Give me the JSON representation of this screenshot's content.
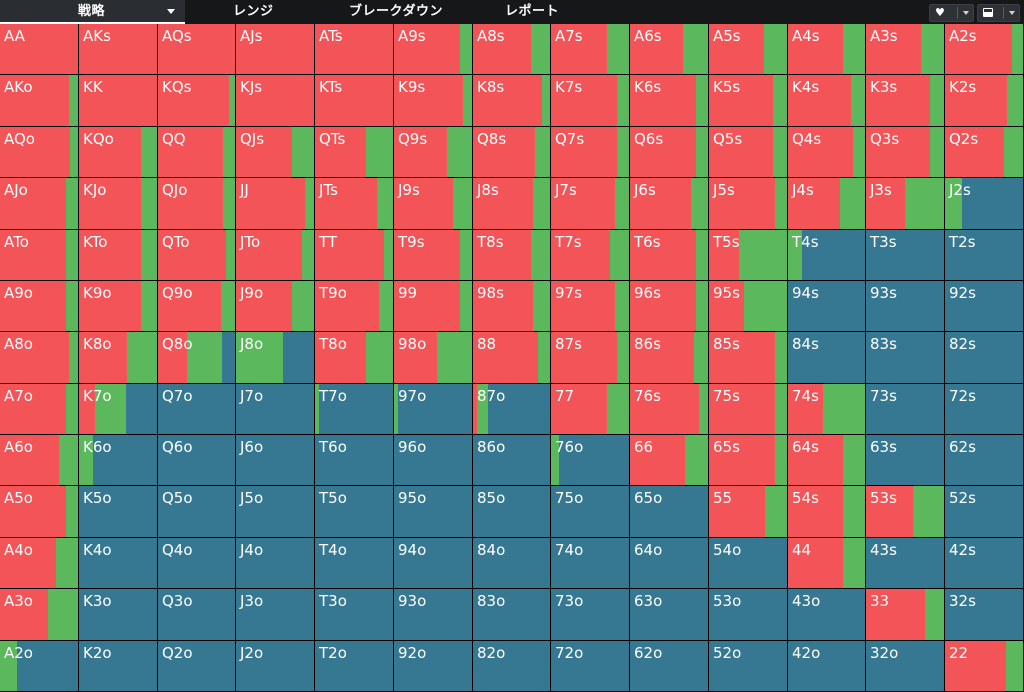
{
  "colors": {
    "raise": "#f25457",
    "call": "#5cb85c",
    "fold": "#367891",
    "background": "#000000"
  },
  "tabs": [
    {
      "id": "strategy",
      "label": "戦略",
      "active": true
    },
    {
      "id": "range",
      "label": "レンジ",
      "active": false
    },
    {
      "id": "breakdown",
      "label": "ブレークダウン",
      "active": false
    },
    {
      "id": "report",
      "label": "レポート",
      "active": false
    }
  ],
  "toolbar": {
    "favorite_icon": "heart-icon",
    "layout_icon": "panel-layout-icon"
  },
  "grid": {
    "rows": [
      [
        {
          "label": "AA",
          "raise": 1.0,
          "call": 0.0
        },
        {
          "label": "AKs",
          "raise": 1.0,
          "call": 0.0
        },
        {
          "label": "AQs",
          "raise": 1.0,
          "call": 0.0
        },
        {
          "label": "AJs",
          "raise": 1.0,
          "call": 0.0
        },
        {
          "label": "ATs",
          "raise": 1.0,
          "call": 0.0
        },
        {
          "label": "A9s",
          "raise": 0.85,
          "call": 0.15
        },
        {
          "label": "A8s",
          "raise": 0.75,
          "call": 0.25
        },
        {
          "label": "A7s",
          "raise": 0.72,
          "call": 0.28
        },
        {
          "label": "A6s",
          "raise": 0.68,
          "call": 0.32
        },
        {
          "label": "A5s",
          "raise": 0.7,
          "call": 0.3
        },
        {
          "label": "A4s",
          "raise": 0.72,
          "call": 0.28
        },
        {
          "label": "A3s",
          "raise": 0.7,
          "call": 0.3
        },
        {
          "label": "A2s",
          "raise": 0.86,
          "call": 0.14
        }
      ],
      [
        {
          "label": "AKo",
          "raise": 0.88,
          "call": 0.12
        },
        {
          "label": "KK",
          "raise": 1.0,
          "call": 0.0
        },
        {
          "label": "KQs",
          "raise": 0.92,
          "call": 0.08
        },
        {
          "label": "KJs",
          "raise": 1.0,
          "call": 0.0
        },
        {
          "label": "KTs",
          "raise": 1.0,
          "call": 0.0
        },
        {
          "label": "K9s",
          "raise": 0.88,
          "call": 0.12
        },
        {
          "label": "K8s",
          "raise": 0.9,
          "call": 0.1
        },
        {
          "label": "K7s",
          "raise": 0.85,
          "call": 0.15
        },
        {
          "label": "K6s",
          "raise": 0.85,
          "call": 0.15
        },
        {
          "label": "K5s",
          "raise": 0.82,
          "call": 0.18
        },
        {
          "label": "K4s",
          "raise": 0.82,
          "call": 0.18
        },
        {
          "label": "K3s",
          "raise": 0.82,
          "call": 0.18
        },
        {
          "label": "K2s",
          "raise": 0.8,
          "call": 0.2
        }
      ],
      [
        {
          "label": "AQo",
          "raise": 0.9,
          "call": 0.1
        },
        {
          "label": "KQo",
          "raise": 0.8,
          "call": 0.2
        },
        {
          "label": "QQ",
          "raise": 0.85,
          "call": 0.15
        },
        {
          "label": "QJs",
          "raise": 0.72,
          "call": 0.28
        },
        {
          "label": "QTs",
          "raise": 0.65,
          "call": 0.35
        },
        {
          "label": "Q9s",
          "raise": 0.68,
          "call": 0.32
        },
        {
          "label": "Q8s",
          "raise": 0.8,
          "call": 0.2
        },
        {
          "label": "Q7s",
          "raise": 0.85,
          "call": 0.15
        },
        {
          "label": "Q6s",
          "raise": 0.85,
          "call": 0.15
        },
        {
          "label": "Q5s",
          "raise": 0.82,
          "call": 0.18
        },
        {
          "label": "Q4s",
          "raise": 0.85,
          "call": 0.15
        },
        {
          "label": "Q3s",
          "raise": 0.82,
          "call": 0.18
        },
        {
          "label": "Q2s",
          "raise": 0.76,
          "call": 0.24
        }
      ],
      [
        {
          "label": "AJo",
          "raise": 0.85,
          "call": 0.15
        },
        {
          "label": "KJo",
          "raise": 0.8,
          "call": 0.2
        },
        {
          "label": "QJo",
          "raise": 0.85,
          "call": 0.15
        },
        {
          "label": "JJ",
          "raise": 0.88,
          "call": 0.12
        },
        {
          "label": "JTs",
          "raise": 0.8,
          "call": 0.2
        },
        {
          "label": "J9s",
          "raise": 0.75,
          "call": 0.25
        },
        {
          "label": "J8s",
          "raise": 0.78,
          "call": 0.22
        },
        {
          "label": "J7s",
          "raise": 0.82,
          "call": 0.18
        },
        {
          "label": "J6s",
          "raise": 0.78,
          "call": 0.22
        },
        {
          "label": "J5s",
          "raise": 0.85,
          "call": 0.15
        },
        {
          "label": "J4s",
          "raise": 0.68,
          "call": 0.32
        },
        {
          "label": "J3s",
          "raise": 0.5,
          "call": 0.5
        },
        {
          "label": "J2s",
          "raise": 0.0,
          "call": 0.22
        }
      ],
      [
        {
          "label": "ATo",
          "raise": 0.85,
          "call": 0.15
        },
        {
          "label": "KTo",
          "raise": 0.8,
          "call": 0.2
        },
        {
          "label": "QTo",
          "raise": 0.88,
          "call": 0.12
        },
        {
          "label": "JTo",
          "raise": 0.85,
          "call": 0.15
        },
        {
          "label": "TT",
          "raise": 0.88,
          "call": 0.12
        },
        {
          "label": "T9s",
          "raise": 0.85,
          "call": 0.15
        },
        {
          "label": "T8s",
          "raise": 0.75,
          "call": 0.25
        },
        {
          "label": "T7s",
          "raise": 0.75,
          "call": 0.25
        },
        {
          "label": "T6s",
          "raise": 0.85,
          "call": 0.15
        },
        {
          "label": "T5s",
          "raise": 0.38,
          "call": 0.62
        },
        {
          "label": "T4s",
          "raise": 0.0,
          "call": 0.18
        },
        {
          "label": "T3s",
          "raise": 0.0,
          "call": 0.0
        },
        {
          "label": "T2s",
          "raise": 0.0,
          "call": 0.0
        }
      ],
      [
        {
          "label": "A9o",
          "raise": 0.85,
          "call": 0.15
        },
        {
          "label": "K9o",
          "raise": 0.8,
          "call": 0.2
        },
        {
          "label": "Q9o",
          "raise": 0.82,
          "call": 0.18
        },
        {
          "label": "J9o",
          "raise": 0.72,
          "call": 0.28
        },
        {
          "label": "T9o",
          "raise": 0.82,
          "call": 0.18
        },
        {
          "label": "99",
          "raise": 0.85,
          "call": 0.15
        },
        {
          "label": "98s",
          "raise": 0.78,
          "call": 0.22
        },
        {
          "label": "97s",
          "raise": 0.82,
          "call": 0.18
        },
        {
          "label": "96s",
          "raise": 0.85,
          "call": 0.15
        },
        {
          "label": "95s",
          "raise": 0.45,
          "call": 0.55
        },
        {
          "label": "94s",
          "raise": 0.0,
          "call": 0.0
        },
        {
          "label": "93s",
          "raise": 0.0,
          "call": 0.0
        },
        {
          "label": "92s",
          "raise": 0.0,
          "call": 0.0
        }
      ],
      [
        {
          "label": "A8o",
          "raise": 0.88,
          "call": 0.12
        },
        {
          "label": "K8o",
          "raise": 0.62,
          "call": 0.38
        },
        {
          "label": "Q8o",
          "raise": 0.38,
          "call": 0.45
        },
        {
          "label": "J8o",
          "raise": 0.0,
          "call": 0.6
        },
        {
          "label": "T8o",
          "raise": 0.65,
          "call": 0.35
        },
        {
          "label": "98o",
          "raise": 0.55,
          "call": 0.45
        },
        {
          "label": "88",
          "raise": 0.85,
          "call": 0.15
        },
        {
          "label": "87s",
          "raise": 0.85,
          "call": 0.15
        },
        {
          "label": "86s",
          "raise": 0.82,
          "call": 0.18
        },
        {
          "label": "85s",
          "raise": 0.85,
          "call": 0.15
        },
        {
          "label": "84s",
          "raise": 0.0,
          "call": 0.0
        },
        {
          "label": "83s",
          "raise": 0.0,
          "call": 0.0
        },
        {
          "label": "82s",
          "raise": 0.0,
          "call": 0.0
        }
      ],
      [
        {
          "label": "A7o",
          "raise": 0.85,
          "call": 0.15
        },
        {
          "label": "K7o",
          "raise": 0.2,
          "call": 0.4
        },
        {
          "label": "Q7o",
          "raise": 0.0,
          "call": 0.0
        },
        {
          "label": "J7o",
          "raise": 0.0,
          "call": 0.0
        },
        {
          "label": "T7o",
          "raise": 0.0,
          "call": 0.05
        },
        {
          "label": "97o",
          "raise": 0.0,
          "call": 0.05
        },
        {
          "label": "87o",
          "raise": 0.05,
          "call": 0.15
        },
        {
          "label": "77",
          "raise": 0.72,
          "call": 0.28
        },
        {
          "label": "76s",
          "raise": 0.88,
          "call": 0.12
        },
        {
          "label": "75s",
          "raise": 0.85,
          "call": 0.15
        },
        {
          "label": "74s",
          "raise": 0.45,
          "call": 0.55
        },
        {
          "label": "73s",
          "raise": 0.0,
          "call": 0.0
        },
        {
          "label": "72s",
          "raise": 0.0,
          "call": 0.0
        }
      ],
      [
        {
          "label": "A6o",
          "raise": 0.75,
          "call": 0.25
        },
        {
          "label": "K6o",
          "raise": 0.0,
          "call": 0.18
        },
        {
          "label": "Q6o",
          "raise": 0.0,
          "call": 0.0
        },
        {
          "label": "J6o",
          "raise": 0.0,
          "call": 0.0
        },
        {
          "label": "T6o",
          "raise": 0.0,
          "call": 0.0
        },
        {
          "label": "96o",
          "raise": 0.0,
          "call": 0.0
        },
        {
          "label": "86o",
          "raise": 0.0,
          "call": 0.0
        },
        {
          "label": "76o",
          "raise": 0.0,
          "call": 0.1
        },
        {
          "label": "66",
          "raise": 0.7,
          "call": 0.3
        },
        {
          "label": "65s",
          "raise": 0.85,
          "call": 0.15
        },
        {
          "label": "64s",
          "raise": 0.72,
          "call": 0.28
        },
        {
          "label": "63s",
          "raise": 0.0,
          "call": 0.0
        },
        {
          "label": "62s",
          "raise": 0.0,
          "call": 0.0
        }
      ],
      [
        {
          "label": "A5o",
          "raise": 0.85,
          "call": 0.15
        },
        {
          "label": "K5o",
          "raise": 0.0,
          "call": 0.0
        },
        {
          "label": "Q5o",
          "raise": 0.0,
          "call": 0.0
        },
        {
          "label": "J5o",
          "raise": 0.0,
          "call": 0.0
        },
        {
          "label": "T5o",
          "raise": 0.0,
          "call": 0.0
        },
        {
          "label": "95o",
          "raise": 0.0,
          "call": 0.0
        },
        {
          "label": "85o",
          "raise": 0.0,
          "call": 0.0
        },
        {
          "label": "75o",
          "raise": 0.0,
          "call": 0.0
        },
        {
          "label": "65o",
          "raise": 0.0,
          "call": 0.0
        },
        {
          "label": "55",
          "raise": 0.72,
          "call": 0.28
        },
        {
          "label": "54s",
          "raise": 0.72,
          "call": 0.28
        },
        {
          "label": "53s",
          "raise": 0.6,
          "call": 0.4
        },
        {
          "label": "52s",
          "raise": 0.0,
          "call": 0.0
        }
      ],
      [
        {
          "label": "A4o",
          "raise": 0.72,
          "call": 0.28
        },
        {
          "label": "K4o",
          "raise": 0.0,
          "call": 0.0
        },
        {
          "label": "Q4o",
          "raise": 0.0,
          "call": 0.0
        },
        {
          "label": "J4o",
          "raise": 0.0,
          "call": 0.0
        },
        {
          "label": "T4o",
          "raise": 0.0,
          "call": 0.0
        },
        {
          "label": "94o",
          "raise": 0.0,
          "call": 0.0
        },
        {
          "label": "84o",
          "raise": 0.0,
          "call": 0.0
        },
        {
          "label": "74o",
          "raise": 0.0,
          "call": 0.0
        },
        {
          "label": "64o",
          "raise": 0.0,
          "call": 0.0
        },
        {
          "label": "54o",
          "raise": 0.0,
          "call": 0.0
        },
        {
          "label": "44",
          "raise": 0.72,
          "call": 0.28
        },
        {
          "label": "43s",
          "raise": 0.0,
          "call": 0.0
        },
        {
          "label": "42s",
          "raise": 0.0,
          "call": 0.0
        }
      ],
      [
        {
          "label": "A3o",
          "raise": 0.62,
          "call": 0.38
        },
        {
          "label": "K3o",
          "raise": 0.0,
          "call": 0.0
        },
        {
          "label": "Q3o",
          "raise": 0.0,
          "call": 0.0
        },
        {
          "label": "J3o",
          "raise": 0.0,
          "call": 0.0
        },
        {
          "label": "T3o",
          "raise": 0.0,
          "call": 0.0
        },
        {
          "label": "93o",
          "raise": 0.0,
          "call": 0.0
        },
        {
          "label": "83o",
          "raise": 0.0,
          "call": 0.0
        },
        {
          "label": "73o",
          "raise": 0.0,
          "call": 0.0
        },
        {
          "label": "63o",
          "raise": 0.0,
          "call": 0.0
        },
        {
          "label": "53o",
          "raise": 0.0,
          "call": 0.0
        },
        {
          "label": "43o",
          "raise": 0.0,
          "call": 0.0
        },
        {
          "label": "33",
          "raise": 0.75,
          "call": 0.25
        },
        {
          "label": "32s",
          "raise": 0.0,
          "call": 0.0
        }
      ],
      [
        {
          "label": "A2o",
          "raise": 0.0,
          "call": 0.22
        },
        {
          "label": "K2o",
          "raise": 0.0,
          "call": 0.0
        },
        {
          "label": "Q2o",
          "raise": 0.0,
          "call": 0.0
        },
        {
          "label": "J2o",
          "raise": 0.0,
          "call": 0.0
        },
        {
          "label": "T2o",
          "raise": 0.0,
          "call": 0.0
        },
        {
          "label": "92o",
          "raise": 0.0,
          "call": 0.0
        },
        {
          "label": "82o",
          "raise": 0.0,
          "call": 0.0
        },
        {
          "label": "72o",
          "raise": 0.0,
          "call": 0.0
        },
        {
          "label": "62o",
          "raise": 0.0,
          "call": 0.0
        },
        {
          "label": "52o",
          "raise": 0.0,
          "call": 0.0
        },
        {
          "label": "42o",
          "raise": 0.0,
          "call": 0.0
        },
        {
          "label": "32o",
          "raise": 0.0,
          "call": 0.0
        },
        {
          "label": "22",
          "raise": 0.78,
          "call": 0.22
        }
      ]
    ]
  }
}
